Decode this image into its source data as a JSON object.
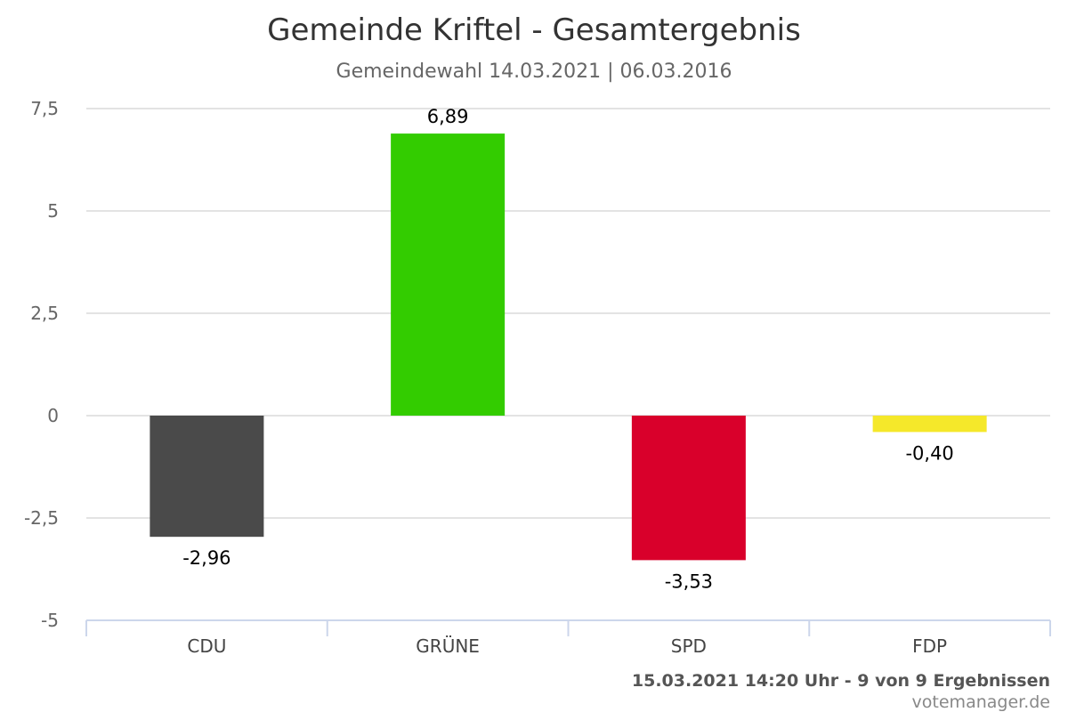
{
  "title": "Gemeinde Kriftel - Gesamtergebnis",
  "subtitle": "Gemeindewahl 14.03.2021 | 06.03.2016",
  "footer": {
    "status": "15.03.2021 14:20 Uhr - 9 von 9 Ergebnissen",
    "credit": "votemanager.de"
  },
  "chart_data": {
    "type": "bar",
    "categories": [
      "CDU",
      "GRÜNE",
      "SPD",
      "FDP"
    ],
    "values": [
      -2.96,
      6.89,
      -3.53,
      -0.4
    ],
    "value_labels": [
      "-2,96",
      "6,89",
      "-3,53",
      "-0,40"
    ],
    "colors": [
      "#4a4a4a",
      "#33cc00",
      "#d9002b",
      "#f5e82a"
    ],
    "ylim": [
      -5,
      7.5
    ],
    "yticks": [
      7.5,
      5,
      2.5,
      0,
      -2.5,
      -5
    ],
    "ytick_labels": [
      "7,5",
      "5",
      "2,5",
      "0",
      "-2,5",
      "-5"
    ],
    "grid": true,
    "xlabel": "",
    "ylabel": ""
  }
}
